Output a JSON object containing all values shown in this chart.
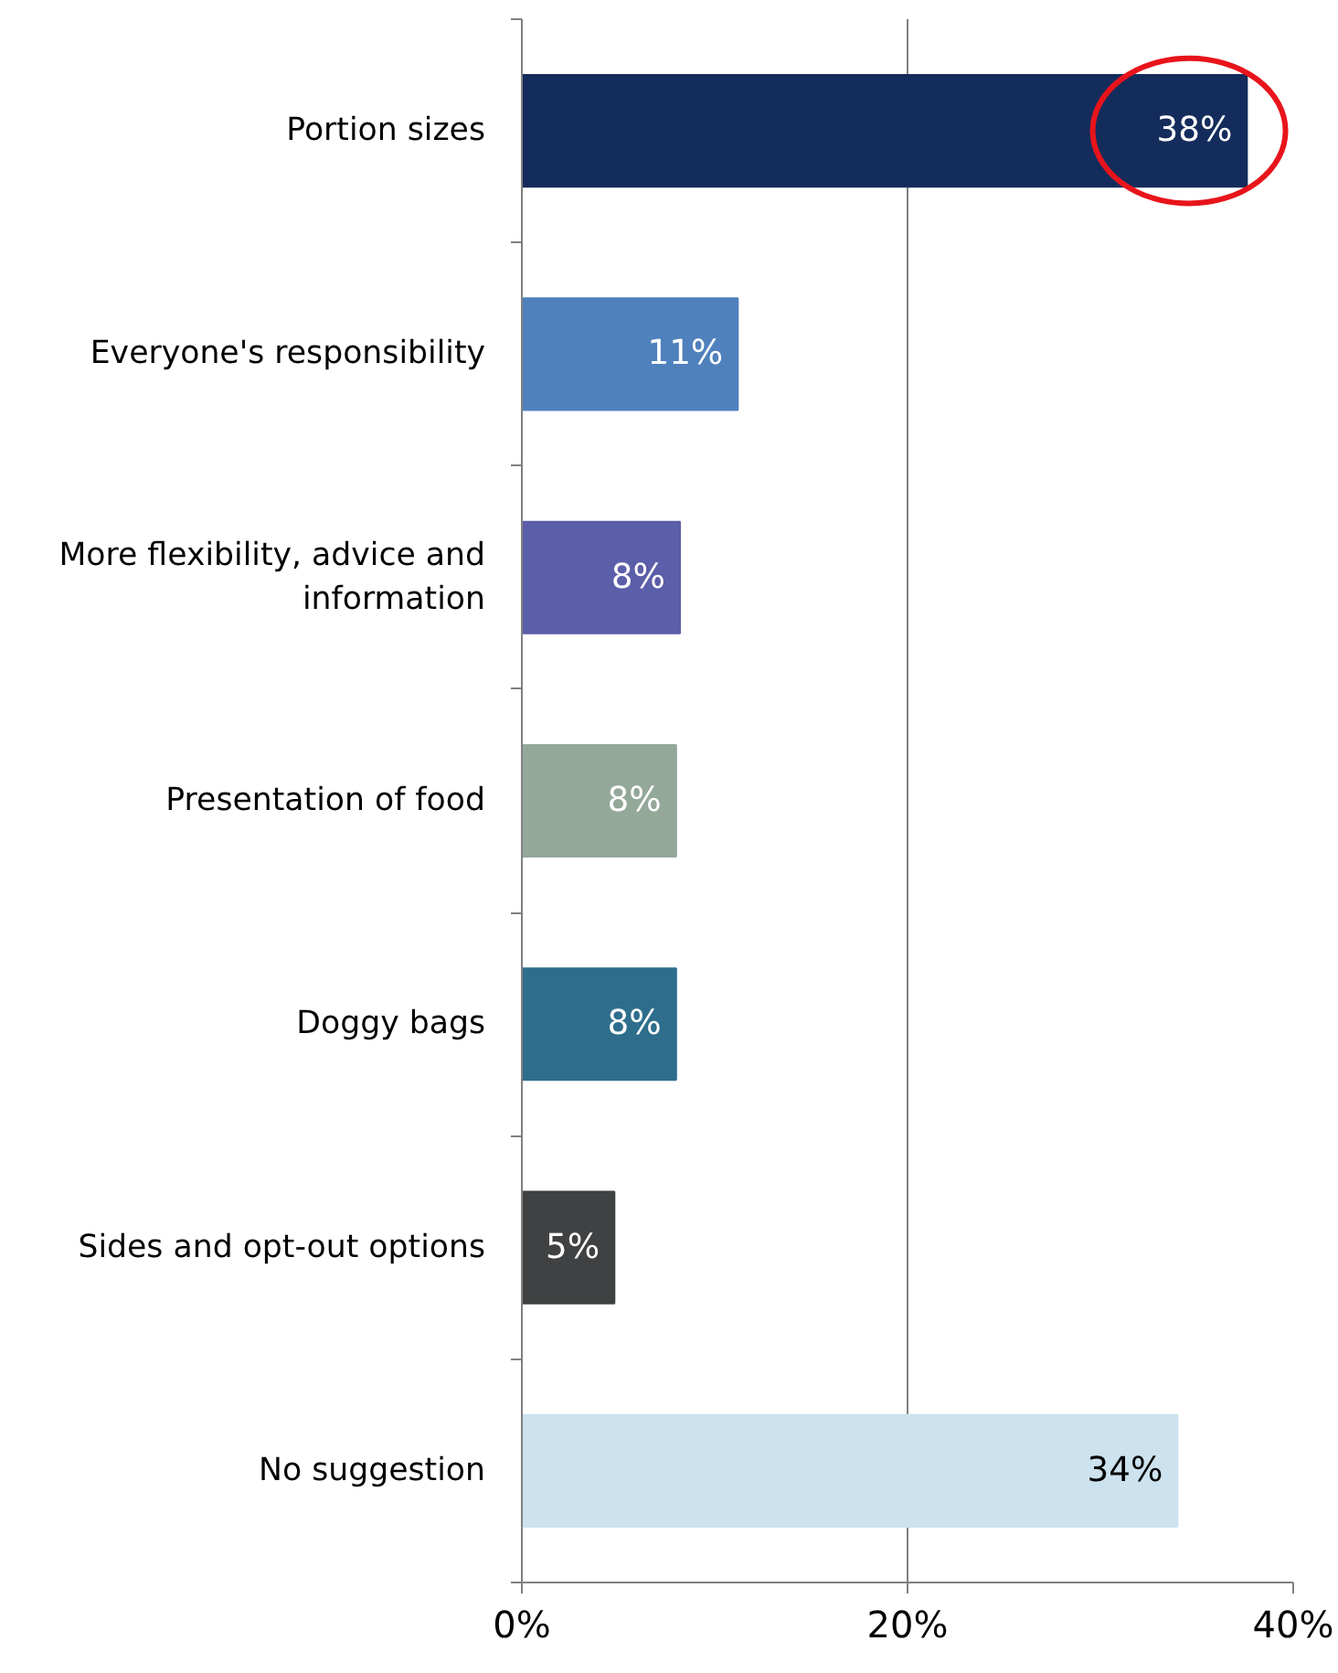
{
  "chart_data": {
    "type": "bar",
    "orientation": "horizontal",
    "categories": [
      "Portion sizes",
      "Everyone's responsibility",
      "More flexibility, advice and information",
      "Presentation of food",
      "Doggy bags",
      "Sides and opt-out options",
      "No suggestion"
    ],
    "values": [
      37.6,
      11.2,
      8.2,
      8.0,
      8.0,
      4.8,
      34.0
    ],
    "value_labels": [
      "38%",
      "11%",
      "8%",
      "8%",
      "8%",
      "5%",
      "34%"
    ],
    "colors": [
      "#142c5c",
      "#4f81bd",
      "#5b5ea8",
      "#94a89a",
      "#2e6e8c",
      "#3f4142",
      "#cce2ee"
    ],
    "xlim": [
      0,
      40
    ],
    "xticks": [
      {
        "value": 0,
        "label": "0%"
      },
      {
        "value": 20,
        "label": "20%"
      },
      {
        "value": 40,
        "label": "40%"
      }
    ],
    "grid": "x"
  }
}
